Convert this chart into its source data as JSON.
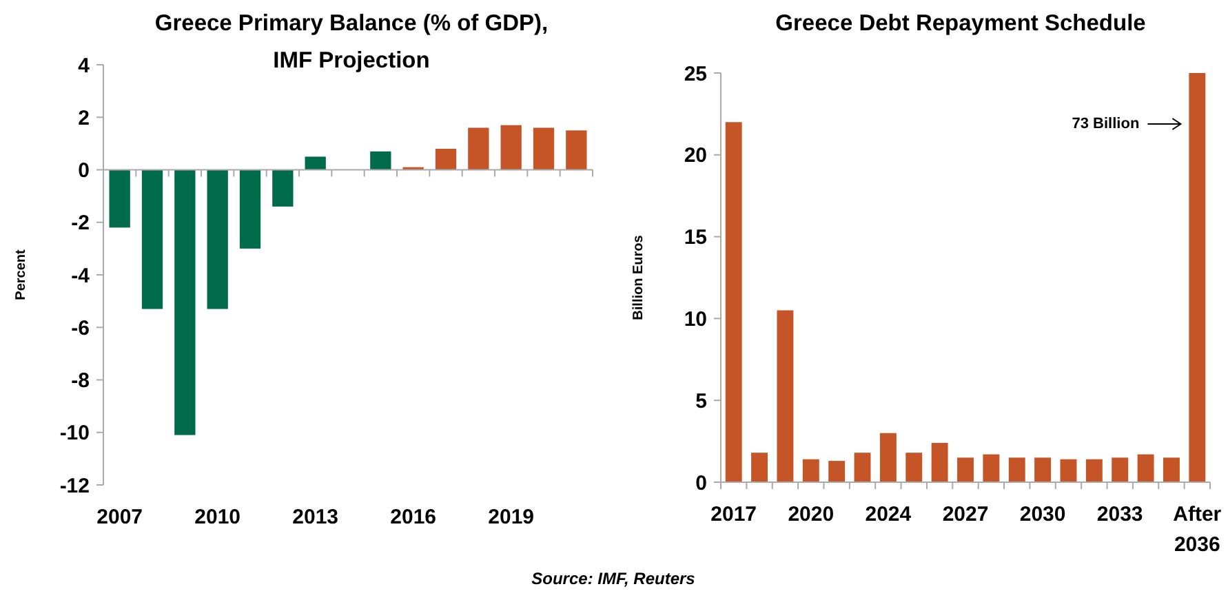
{
  "chart_data": [
    {
      "type": "bar",
      "title": "Greece Primary Balance (% of GDP),\nIMF Projection",
      "ylabel": "Percent",
      "categories": [
        "2007",
        null,
        null,
        "2010",
        null,
        null,
        "2013",
        null,
        null,
        "2016",
        null,
        null,
        "2019",
        null,
        null
      ],
      "values": [
        -2.2,
        -5.3,
        -10.1,
        -5.3,
        -3.0,
        -1.4,
        0.5,
        0,
        0.7,
        0.1,
        0.8,
        1.6,
        1.7,
        1.6,
        1.5
      ],
      "colors": [
        "#006b4b",
        "#006b4b",
        "#006b4b",
        "#006b4b",
        "#006b4b",
        "#006b4b",
        "#006b4b",
        "#006b4b",
        "#006b4b",
        "#c55527",
        "#c55527",
        "#c55527",
        "#c55527",
        "#c55527",
        "#c55527"
      ],
      "ylim": [
        -12,
        4
      ],
      "yticks": [
        -12,
        -10,
        -8,
        -6,
        -4,
        -2,
        0,
        2,
        4
      ],
      "annotations": [
        "Source: IMF, Reuters"
      ]
    },
    {
      "type": "bar",
      "title": "Greece Debt Repayment Schedule",
      "ylabel": "Billion Euros",
      "categories": [
        "2017",
        null,
        null,
        "2020",
        null,
        null,
        "2024",
        null,
        null,
        "2027",
        null,
        null,
        "2030",
        null,
        null,
        "2033",
        null,
        null,
        "After 2036"
      ],
      "values": [
        22,
        1.8,
        10.5,
        1.4,
        1.3,
        1.8,
        3.0,
        1.8,
        2.4,
        1.5,
        1.7,
        1.5,
        1.5,
        1.4,
        1.4,
        1.5,
        1.7,
        1.5,
        25
      ],
      "color": "#c55527",
      "ylim": [
        0,
        25
      ],
      "yticks": [
        0,
        5,
        10,
        15,
        20,
        25
      ],
      "annotations": [
        "73 Billion"
      ]
    }
  ]
}
